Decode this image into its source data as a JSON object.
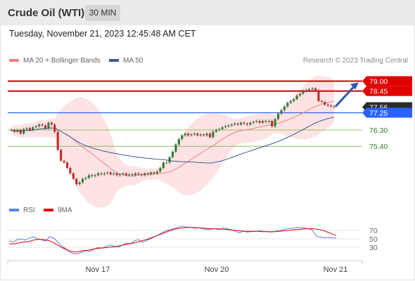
{
  "header": {
    "instrument": "Crude Oil (WTI)",
    "timeframe": "30 MIN"
  },
  "timestamp": "Tuesday, November 21, 2023 12:45:48 AM CET",
  "legend": {
    "ma20_label": "MA 20 + Bollinger Bands",
    "ma50_label": "MA 50",
    "credit": "Research © 2023 Trading Central",
    "rsi_label": "RSI",
    "rsi_ma_label": "9MA"
  },
  "colors": {
    "bull": "#2e7d32",
    "bear": "#c62828",
    "ma20": "#f08080",
    "ma50": "#3b5998",
    "band": "#fde0e0",
    "resistance": "#cc0000",
    "support": "#2e7d32",
    "pivot": "#2962ff",
    "rsi": "#5c7fe6",
    "rsi_ma": "#e00000"
  },
  "chart_data": {
    "type": "candlestick",
    "x_tick_labels": [
      "Nov 17",
      "Nov 20",
      "Nov 21"
    ],
    "ylim": [
      73.0,
      79.6
    ],
    "price_levels": [
      {
        "value": "79.00",
        "kind": "resistance"
      },
      {
        "value": "78.45",
        "kind": "resistance"
      },
      {
        "value": "77.56",
        "kind": "last"
      },
      {
        "value": "77.25",
        "kind": "pivot"
      },
      {
        "value": "76.30",
        "kind": "support"
      },
      {
        "value": "75.40",
        "kind": "support"
      }
    ],
    "close": [
      76.3,
      76.2,
      76.3,
      76.1,
      76.35,
      76.4,
      76.3,
      76.45,
      76.5,
      76.6,
      76.55,
      76.4,
      76.7,
      76.6,
      76.2,
      75.2,
      74.6,
      74.5,
      74.2,
      73.9,
      73.6,
      73.3,
      73.4,
      73.6,
      73.65,
      73.8,
      73.75,
      73.8,
      73.9,
      73.85,
      73.9,
      73.95,
      73.85,
      73.9,
      73.8,
      73.85,
      73.9,
      73.8,
      73.85,
      73.8,
      73.9,
      73.85,
      73.8,
      73.9,
      73.85,
      73.95,
      73.9,
      74.0,
      74.2,
      74.5,
      74.5,
      74.8,
      75.1,
      75.5,
      75.8,
      76.0,
      76.1,
      76.0,
      76.05,
      76.1,
      76.0,
      76.05,
      76.0,
      76.1,
      75.9,
      76.2,
      76.3,
      76.35,
      76.45,
      76.5,
      76.55,
      76.6,
      76.65,
      76.6,
      76.7,
      76.65,
      76.6,
      76.7,
      76.75,
      76.8,
      76.7,
      76.8,
      76.75,
      76.8,
      76.5,
      76.9,
      77.2,
      77.4,
      77.6,
      77.8,
      77.9,
      78.0,
      78.2,
      78.3,
      78.45,
      78.5,
      78.55,
      78.6,
      78.5,
      77.9,
      77.85,
      77.7,
      77.65,
      77.6,
      77.56
    ],
    "rsi": {
      "levels": [
        70,
        50,
        30
      ],
      "ylim": [
        0,
        100
      ],
      "rsi": [
        45,
        42,
        48,
        50,
        47,
        52,
        55,
        50,
        48,
        45,
        55,
        52,
        43,
        33,
        27,
        18,
        15,
        15,
        18,
        22,
        20,
        25,
        30,
        28,
        32,
        35,
        33,
        30,
        35,
        40,
        38,
        45,
        48,
        42,
        46,
        50,
        55,
        60,
        65,
        70,
        72,
        75,
        78,
        80,
        78,
        77,
        75,
        76,
        74,
        72,
        73,
        74,
        72,
        76,
        74,
        72,
        68,
        64,
        68,
        66,
        67,
        68,
        69,
        68,
        67,
        66,
        68,
        70,
        72,
        74,
        75,
        76,
        77,
        76,
        74,
        72,
        57,
        54,
        53,
        53,
        52,
        52
      ],
      "ma9": [
        38,
        38,
        40,
        42,
        43,
        45,
        48,
        49,
        48,
        46,
        42,
        36,
        30,
        25,
        21,
        19,
        20,
        22,
        23,
        25,
        27,
        28,
        29,
        30,
        31,
        33,
        35,
        37,
        39,
        41,
        44,
        47,
        50,
        54,
        58,
        62,
        66,
        70,
        73,
        75,
        76,
        77,
        77,
        76,
        76,
        75,
        74,
        74,
        74,
        73,
        72,
        71,
        70,
        69,
        68,
        68,
        68,
        68,
        67,
        67,
        67,
        67,
        68,
        69,
        70,
        71,
        72,
        73,
        74,
        74,
        74,
        72,
        70,
        66,
        62,
        58
      ]
    }
  }
}
